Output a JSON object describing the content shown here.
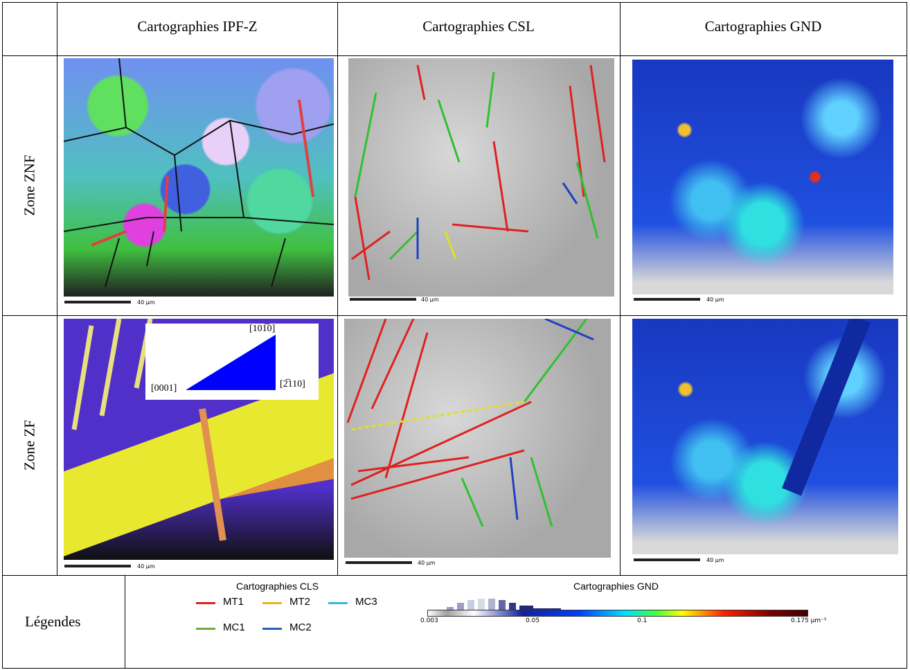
{
  "header": {
    "columns": [
      "Cartographies IPF-Z",
      "Cartographies CSL",
      "Cartographies GND"
    ]
  },
  "rows": [
    {
      "label": "Zone ZNF",
      "scale_bars": [
        "40 µm",
        "40 µm",
        "40 µm"
      ]
    },
    {
      "label": "Zone ZF",
      "scale_bars": [
        "40 µm",
        "40 µm",
        "40 µm"
      ],
      "ipf_key": [
        "[101̅0]",
        "[0001]",
        "[2̅110]"
      ]
    }
  ],
  "legend": {
    "label": "Légendes",
    "cls": {
      "title": "Cartographies CLS",
      "items": [
        "MT1",
        "MT2",
        "MC3",
        "MC1",
        "MC2"
      ]
    },
    "gnd": {
      "title": "Cartographies GND",
      "ticks": [
        "0.003",
        "0.05",
        "0.1",
        "0.175 µm⁻¹"
      ]
    }
  }
}
